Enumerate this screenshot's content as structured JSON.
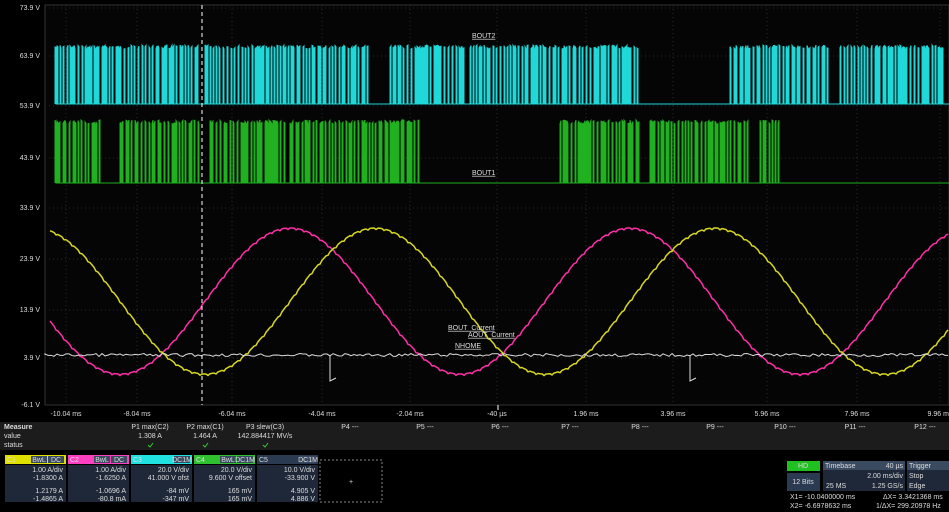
{
  "scope": {
    "y_labels": [
      "73.9 V",
      "63.9 V",
      "53.9 V",
      "43.9 V",
      "33.9 V",
      "23.9 V",
      "13.9 V",
      "3.9 V",
      "-6.1 V"
    ],
    "x_labels": [
      "-10.04 ms",
      "-8.04 ms",
      "-6.04 ms",
      "-4.04 ms",
      "-2.04 ms",
      "-40 µs",
      "1.96 ms",
      "3.96 ms",
      "5.96 ms",
      "7.96 ms",
      "9.96 ms"
    ],
    "trace_labels": [
      "BOUT2",
      "BOUT1",
      "BOUT_Current",
      "AOUT_Current",
      "NHOME"
    ]
  },
  "measure": {
    "title": "Measure",
    "row_labels": [
      "value",
      "status"
    ],
    "params": [
      "P1 max(C2)",
      "P2 max(C1)",
      "P3 slew(C3)",
      "P4 ---",
      "P5 ---",
      "P6 ---",
      "P7 ---",
      "P8 ---",
      "P9 ---",
      "P10 ---",
      "P11 ---",
      "P12 ---"
    ],
    "values": [
      "1.308 A",
      "1.464 A",
      "142.884417 MV/s"
    ]
  },
  "channels": [
    {
      "name": "C1",
      "tags": [
        "BwL",
        "DC"
      ],
      "lines": [
        "1.00 A/div",
        "-1.8300 A",
        "1.2179 A",
        "-1.4865 A"
      ]
    },
    {
      "name": "C2",
      "tags": [
        "BwL",
        "DC"
      ],
      "lines": [
        "1.00 A/div",
        "-1.6250 A",
        "-1.0696 A",
        "-80.8 mA"
      ]
    },
    {
      "name": "C3",
      "tags": [
        "DC1M"
      ],
      "lines": [
        "20.0 V/div",
        "41.000 V ofst",
        "-84 mV",
        "-347 mV"
      ]
    },
    {
      "name": "C4",
      "tags": [
        "BwL",
        "DC1M"
      ],
      "lines": [
        "20.0 V/div",
        "9.600 V offset",
        "165 mV",
        "165 mV"
      ]
    },
    {
      "name": "C5",
      "tags": [
        "DC1M"
      ],
      "lines": [
        "10.0 V/div",
        "-33.900 V",
        "4.905 V",
        "4.886 V"
      ]
    }
  ],
  "add_button": "+",
  "timebase": {
    "mode": "HD",
    "bits": "12 Bits",
    "title": "Timebase",
    "delay": "40 µs",
    "trigger": "Trigger",
    "div": "2.00 ms/div",
    "samples": "25 MS",
    "rate": "1.25 GS/s",
    "state": "Stop",
    "kind": "Edge",
    "x1": "X1= -10.0400000 ms",
    "dx": "ΔX= 3.3421368 ms",
    "x2": "X2= -6.6978632 ms",
    "inv": "1/ΔX= 299.20978 Hz"
  }
}
